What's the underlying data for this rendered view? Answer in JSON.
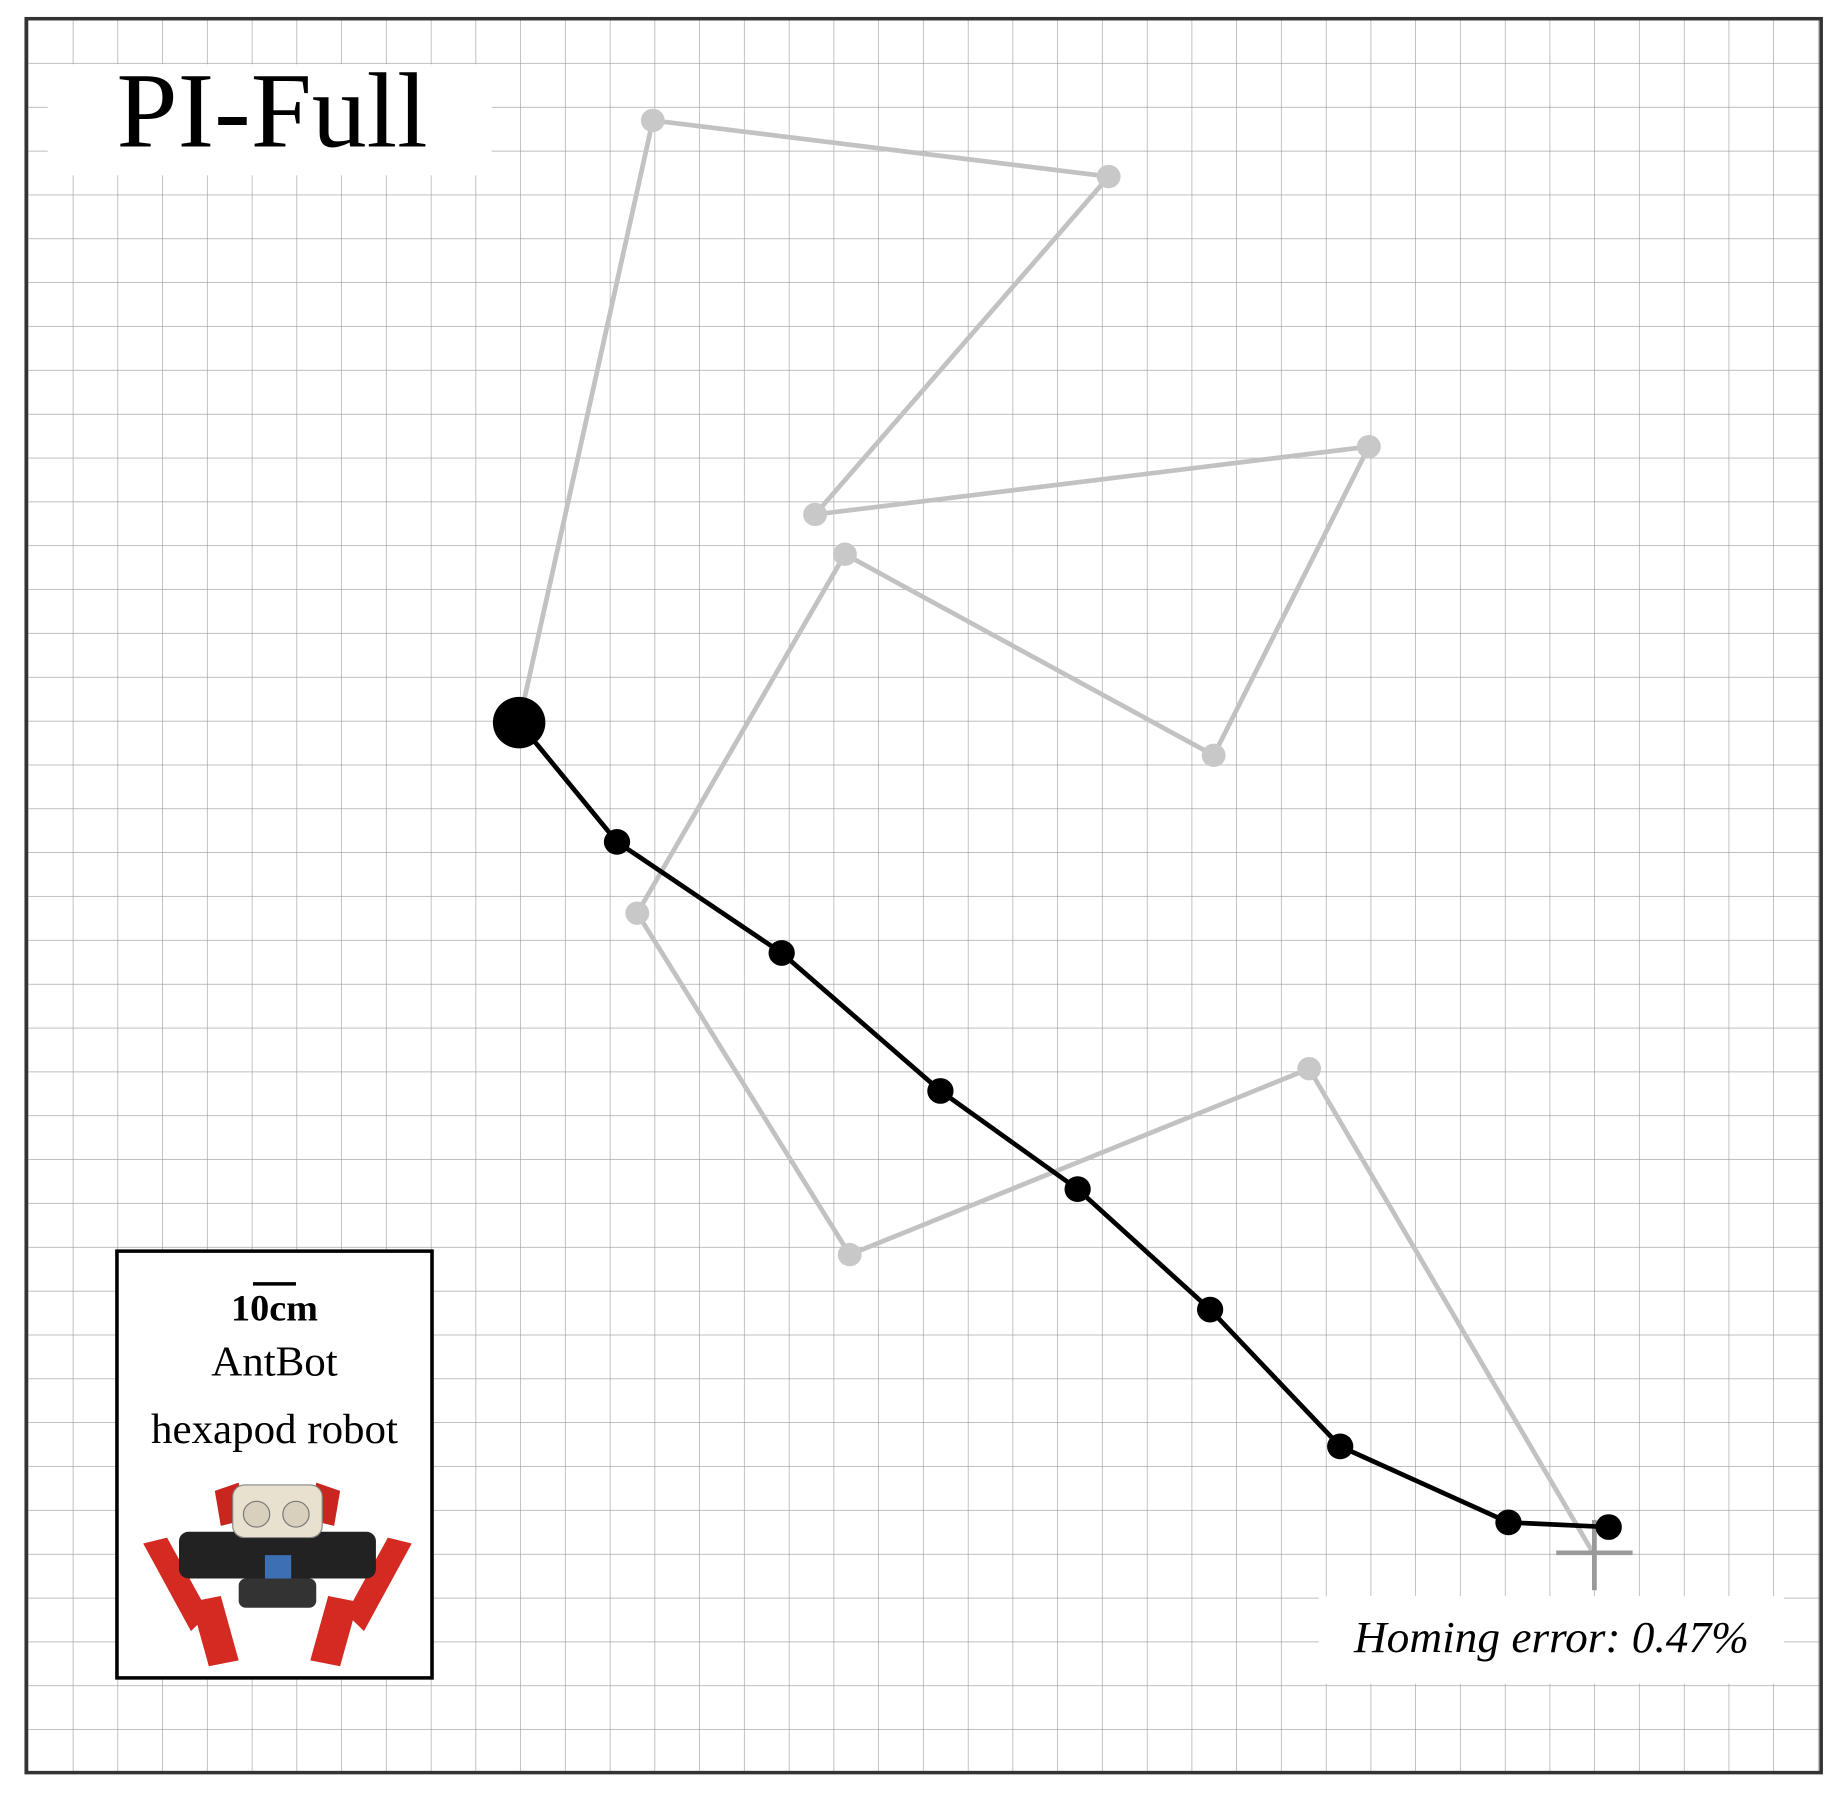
{
  "title": "PI-Full",
  "legend": {
    "scale": "10cm",
    "robot_name": "AntBot",
    "robot_type": "hexapod robot"
  },
  "annotation": "Homing error: 0.47%"
}
